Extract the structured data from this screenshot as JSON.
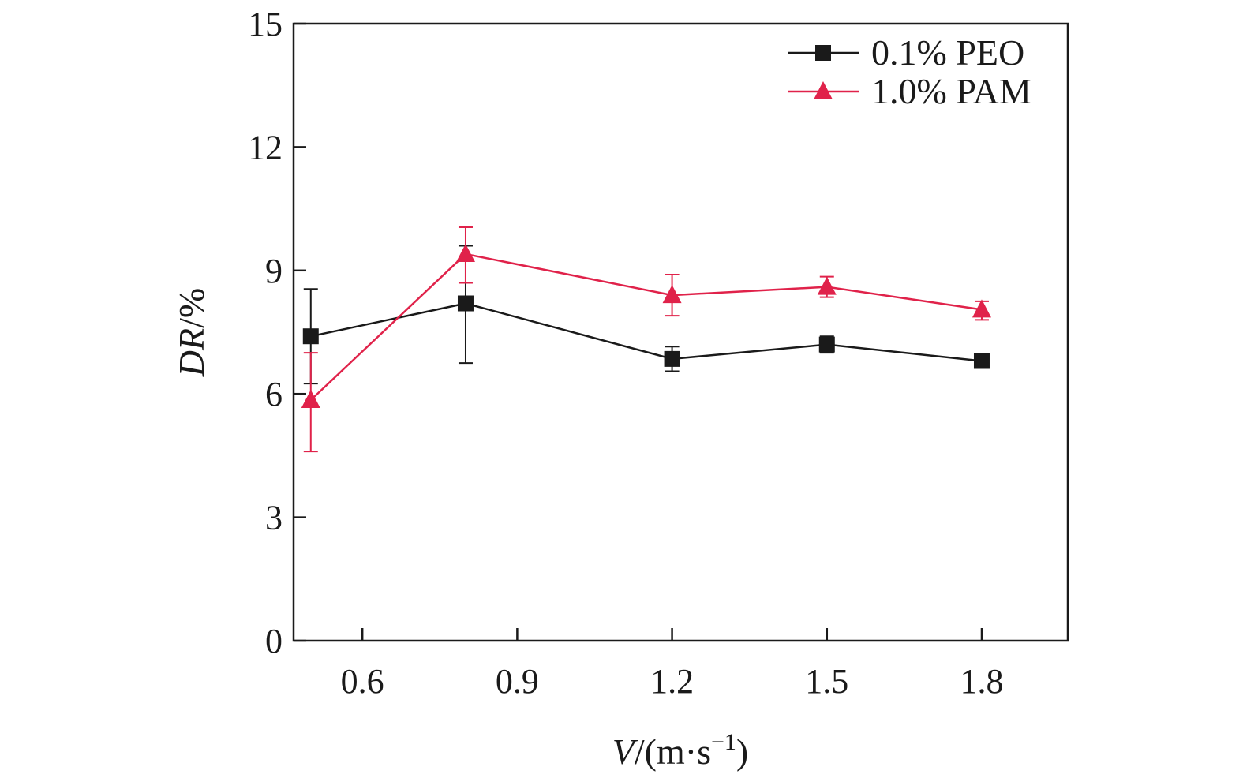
{
  "chart_data": {
    "type": "line",
    "xlabel": "V/(m·s⁻¹)",
    "ylabel": "DR/%",
    "xlim": [
      0.4667,
      1.9667
    ],
    "ylim": [
      0,
      15
    ],
    "x_ticks": [
      0.6,
      0.9,
      1.2,
      1.5,
      1.8
    ],
    "y_ticks": [
      0,
      3,
      6,
      9,
      12,
      15
    ],
    "x_tick_labels": [
      "0.6",
      "0.9",
      "1.2",
      "1.5",
      "1.8"
    ],
    "y_tick_labels": [
      "0",
      "3",
      "6",
      "9",
      "12",
      "15"
    ],
    "legend_position": "top-right",
    "grid": false,
    "series": [
      {
        "name": "0.1% PEO",
        "color": "#1a1a1a",
        "marker": "square",
        "x": [
          0.5,
          0.8,
          1.2,
          1.5,
          1.8
        ],
        "y": [
          7.4,
          8.2,
          6.85,
          7.2,
          6.8
        ],
        "err_low": [
          6.25,
          6.75,
          6.55,
          7.0,
          6.7
        ],
        "err_high": [
          8.55,
          9.6,
          7.15,
          7.4,
          6.9
        ]
      },
      {
        "name": "1.0% PAM",
        "color": "#e0224a",
        "marker": "triangle",
        "x": [
          0.5,
          0.8,
          1.2,
          1.5,
          1.8
        ],
        "y": [
          5.85,
          9.4,
          8.4,
          8.6,
          8.05
        ],
        "err_low": [
          4.6,
          8.7,
          7.9,
          8.35,
          7.8
        ],
        "err_high": [
          7.0,
          10.05,
          8.9,
          8.85,
          8.25
        ]
      }
    ]
  }
}
